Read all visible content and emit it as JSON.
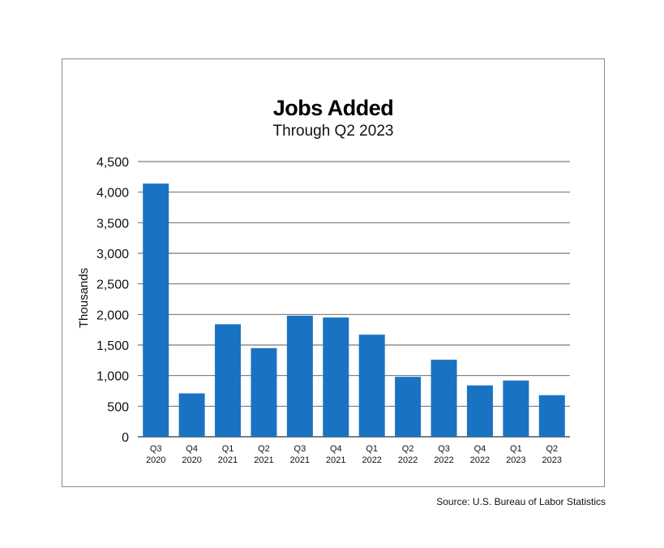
{
  "chart_data": {
    "type": "bar",
    "title": "Jobs Added",
    "subtitle": "Through Q2 2023",
    "xlabel": "",
    "ylabel": "Thousands",
    "categories": [
      [
        "Q3",
        "2020"
      ],
      [
        "Q4",
        "2020"
      ],
      [
        "Q1",
        "2021"
      ],
      [
        "Q2",
        "2021"
      ],
      [
        "Q3",
        "2021"
      ],
      [
        "Q4",
        "2021"
      ],
      [
        "Q1",
        "2022"
      ],
      [
        "Q2",
        "2022"
      ],
      [
        "Q3",
        "2022"
      ],
      [
        "Q4",
        "2022"
      ],
      [
        "Q1",
        "2023"
      ],
      [
        "Q2",
        "2023"
      ]
    ],
    "values": [
      4140,
      710,
      1840,
      1450,
      1980,
      1950,
      1670,
      980,
      1260,
      840,
      920,
      680
    ],
    "ylim": [
      0,
      4500
    ],
    "yticks": [
      0,
      500,
      1000,
      1500,
      2000,
      2500,
      3000,
      3500,
      4000,
      4500
    ],
    "ytick_labels": [
      "0",
      "500",
      "1,000",
      "1,500",
      "2,000",
      "2,500",
      "3,000",
      "3,500",
      "4,000",
      "4,500"
    ],
    "grid": true,
    "bar_color": "#1a73c2",
    "grid_color": "#555555"
  },
  "source": "Source: U.S. Bureau of Labor Statistics"
}
